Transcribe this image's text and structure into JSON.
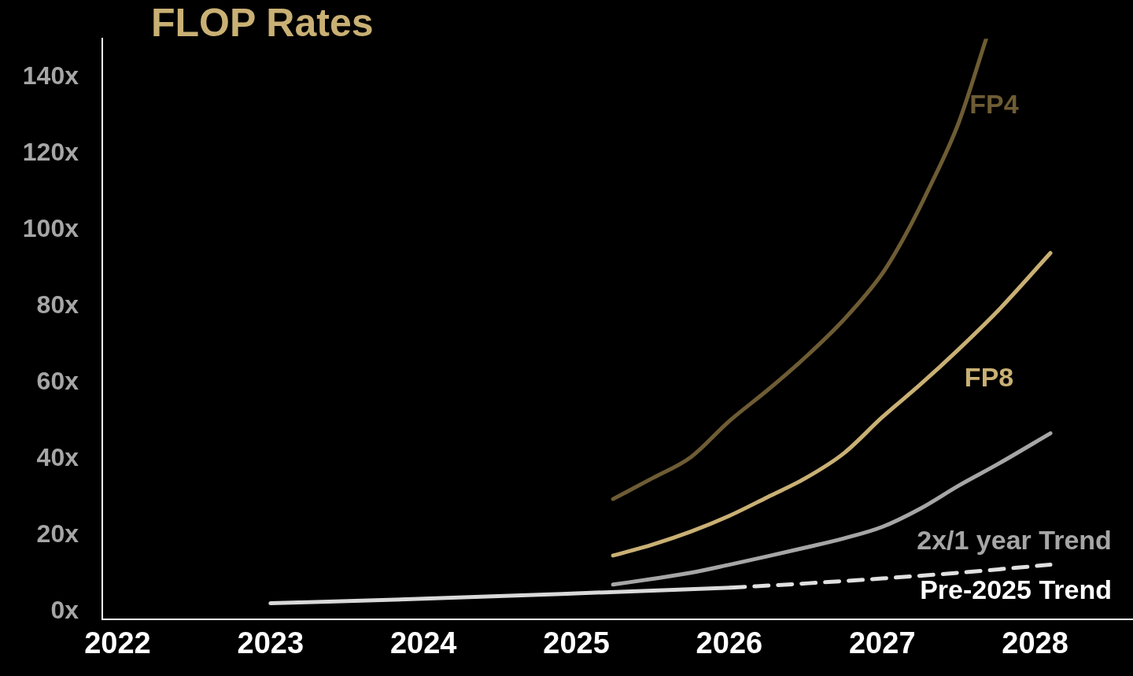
{
  "chart_data": {
    "type": "line",
    "title": "FLOP Rates",
    "xlim": [
      2021.9,
      2028.64
    ],
    "xticks": [
      2022,
      2023,
      2024,
      2025,
      2026,
      2027,
      2028
    ],
    "ylim": [
      -2,
      150
    ],
    "yticks": [
      {
        "value": 0,
        "label": "0x"
      },
      {
        "value": 20,
        "label": "20x"
      },
      {
        "value": 40,
        "label": "40x"
      },
      {
        "value": 60,
        "label": "60x"
      },
      {
        "value": 80,
        "label": "80x"
      },
      {
        "value": 100,
        "label": "100x"
      },
      {
        "value": 120,
        "label": "120x"
      },
      {
        "value": 140,
        "label": "140x"
      }
    ],
    "grid": false,
    "legend": false,
    "marker": "none",
    "series": [
      {
        "name": "FP4",
        "color": "#6e5c34",
        "x": [
          2025.24,
          2025.5,
          2025.75,
          2026,
          2026.25,
          2026.5,
          2026.75,
          2027,
          2027.15,
          2027.3,
          2027.5,
          2027.68
        ],
        "values": [
          29.5,
          35,
          40.5,
          49.9,
          58,
          66.7,
          76.5,
          88.5,
          98.5,
          110.3,
          128,
          150
        ]
      },
      {
        "name": "FP8",
        "color": "#c9b074",
        "x": [
          2025.24,
          2025.5,
          2025.75,
          2026,
          2026.25,
          2026.5,
          2026.75,
          2027,
          2027.25,
          2027.5,
          2027.75,
          2028.1
        ],
        "values": [
          14.7,
          17.6,
          21,
          25.1,
          30,
          35,
          41.5,
          50.9,
          59.5,
          68.7,
          78.5,
          93.9
        ]
      },
      {
        "name": "2x/1 year Trend",
        "color": "#a6a6a6",
        "x": [
          2025.24,
          2025.5,
          2025.75,
          2026,
          2026.25,
          2026.5,
          2026.75,
          2027,
          2027.25,
          2027.5,
          2027.75,
          2028.1
        ],
        "values": [
          7.1,
          8.6,
          10.2,
          12.3,
          14.5,
          16.8,
          19.2,
          22.2,
          27,
          33,
          38.5,
          46.7
        ]
      },
      {
        "name": "Pre-2025 Trend",
        "color": "#d9d9d9",
        "x": [
          2023,
          2024,
          2025,
          2026.01
        ],
        "values": [
          2.2,
          3.4,
          4.8,
          6.3
        ]
      },
      {
        "color": "#e0e0e0",
        "line_style": "dashed",
        "x": [
          2026.01,
          2026.5,
          2027,
          2027.5,
          2028.1
        ],
        "values": [
          6.3,
          7.4,
          8.7,
          10.2,
          12.3
        ]
      }
    ]
  }
}
